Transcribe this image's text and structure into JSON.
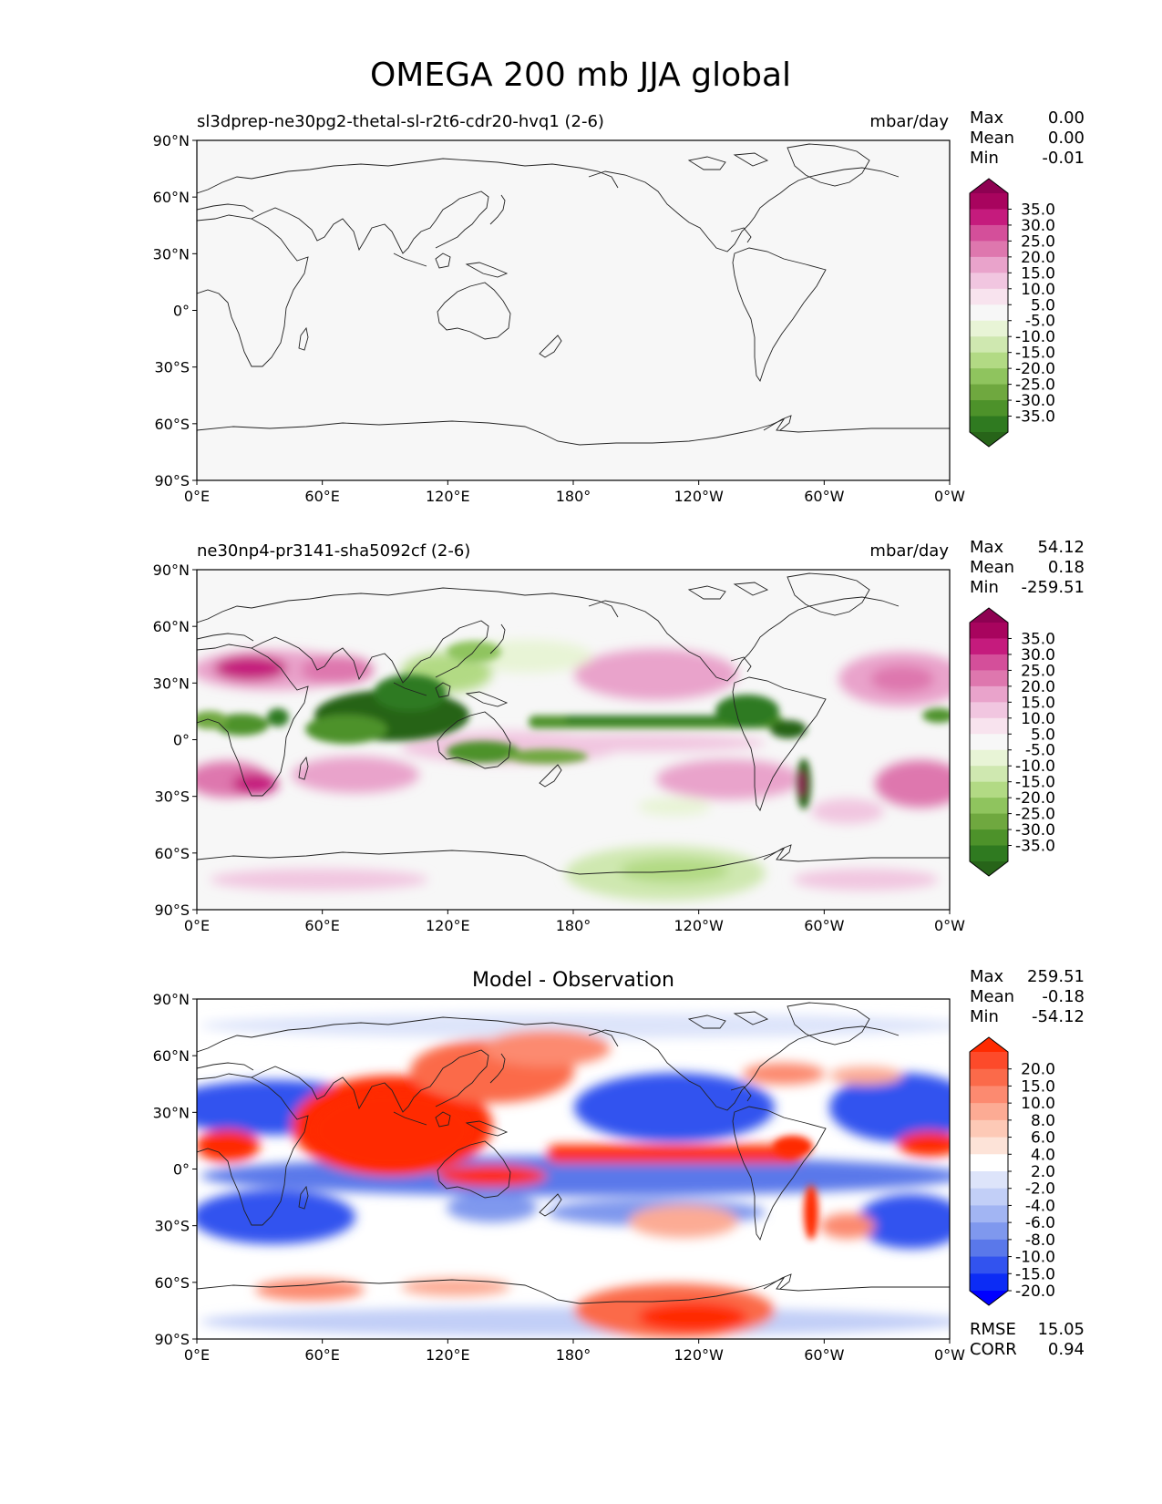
{
  "figure": {
    "title": "OMEGA 200 mb JJA global"
  },
  "chart_data": [
    {
      "type": "heatmap",
      "panel": "test",
      "left_title": "sl3dprep-ne30pg2-thetal-sl-r2t6-cdr20-hvq1 (2-6)",
      "units": "mbar/day",
      "stats": [
        {
          "label": "Max",
          "value": "0.00"
        },
        {
          "label": "Mean",
          "value": "0.00"
        },
        {
          "label": "Min",
          "value": "-0.01"
        }
      ],
      "colorbar": {
        "levels": [
          "35.0",
          "30.0",
          "25.0",
          "20.0",
          "15.0",
          "10.0",
          "5.0",
          "-5.0",
          "-10.0",
          "-15.0",
          "-20.0",
          "-25.0",
          "-30.0",
          "-35.0"
        ],
        "colors": [
          "#8e0152",
          "#a8045e",
          "#c51b7d",
          "#d44f9a",
          "#de77ae",
          "#e9a3cb",
          "#f1c6e0",
          "#f8e3ee",
          "#f7f7f7",
          "#e8f4d6",
          "#cfe8b0",
          "#b2da84",
          "#8fc45e",
          "#6fa83f",
          "#4d922a",
          "#2f7a20",
          "#276419"
        ],
        "extend": "both"
      },
      "field": "near-zero everywhere (uniform)",
      "xticks": [
        "0°E",
        "60°E",
        "120°E",
        "180°",
        "120°W",
        "60°W",
        "0°W"
      ],
      "yticks": [
        "90°N",
        "60°N",
        "30°N",
        "0°",
        "30°S",
        "60°S",
        "90°S"
      ]
    },
    {
      "type": "heatmap",
      "panel": "reference",
      "left_title": "ne30np4-pr3141-sha5092cf (2-6)",
      "units": "mbar/day",
      "stats": [
        {
          "label": "Max",
          "value": "54.12"
        },
        {
          "label": "Mean",
          "value": "0.18"
        },
        {
          "label": "Min",
          "value": "-259.51"
        }
      ],
      "colorbar": {
        "levels": [
          "35.0",
          "30.0",
          "25.0",
          "20.0",
          "15.0",
          "10.0",
          "5.0",
          "-5.0",
          "-10.0",
          "-15.0",
          "-20.0",
          "-25.0",
          "-30.0",
          "-35.0"
        ],
        "colors": [
          "#8e0152",
          "#a8045e",
          "#c51b7d",
          "#d44f9a",
          "#de77ae",
          "#e9a3cb",
          "#f1c6e0",
          "#f8e3ee",
          "#f7f7f7",
          "#e8f4d6",
          "#cfe8b0",
          "#b2da84",
          "#8fc45e",
          "#6fa83f",
          "#4d922a",
          "#2f7a20",
          "#276419"
        ],
        "extend": "both"
      },
      "xticks": [
        "0°E",
        "60°E",
        "120°E",
        "180°",
        "120°W",
        "60°W",
        "0°W"
      ],
      "yticks": [
        "90°N",
        "60°N",
        "30°N",
        "0°",
        "30°S",
        "60°S",
        "90°S"
      ]
    },
    {
      "type": "heatmap",
      "panel": "difference",
      "center_title": "Model - Observation",
      "stats": [
        {
          "label": "Max",
          "value": "259.51"
        },
        {
          "label": "Mean",
          "value": "-0.18"
        },
        {
          "label": "Min",
          "value": "-54.12"
        }
      ],
      "metrics": [
        {
          "label": "RMSE",
          "value": "15.05"
        },
        {
          "label": "CORR",
          "value": "0.94"
        }
      ],
      "colorbar": {
        "levels": [
          "20.0",
          "15.0",
          "10.0",
          "8.0",
          "6.0",
          "4.0",
          "2.0",
          "-2.0",
          "-4.0",
          "-6.0",
          "-8.0",
          "-10.0",
          "-15.0",
          "-20.0"
        ],
        "colors": [
          "#ff2a00",
          "#fd4a2a",
          "#fb6a4a",
          "#fc8a70",
          "#fcab94",
          "#fdc9b6",
          "#fde3d8",
          "#ffffff",
          "#dde4fa",
          "#c2cff7",
          "#a2b5f3",
          "#7f98ee",
          "#5a78ea",
          "#3253ef",
          "#0c2cf5",
          "#0000ff"
        ],
        "extend": "both"
      },
      "xticks": [
        "0°E",
        "60°E",
        "120°E",
        "180°",
        "120°W",
        "60°W",
        "0°W"
      ],
      "yticks": [
        "90°N",
        "60°N",
        "30°N",
        "0°",
        "30°S",
        "60°S",
        "90°S"
      ]
    }
  ]
}
